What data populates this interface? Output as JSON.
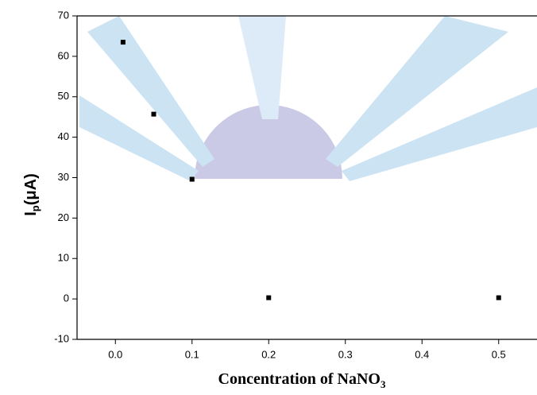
{
  "chart_data": {
    "type": "scatter",
    "xlabel": [
      "Concentration of NaNO",
      "3"
    ],
    "ylabel": [
      "I",
      "p",
      "(μA)"
    ],
    "x": [
      0.01,
      0.05,
      0.1,
      0.2,
      0.5
    ],
    "series": [
      {
        "color": "#000000",
        "values": [
          63.5,
          45.7,
          29.6,
          0.3,
          0.3
        ]
      }
    ],
    "xlim": [
      -0.05,
      0.55
    ],
    "xticks": [
      {
        "value": 0,
        "label": "0.0"
      },
      0.1,
      0.2,
      0.3,
      0.4,
      0.5
    ],
    "ylim": [
      -10,
      70
    ],
    "yticks": [
      -10,
      0,
      10,
      20,
      30,
      40,
      50,
      60,
      70
    ]
  }
}
